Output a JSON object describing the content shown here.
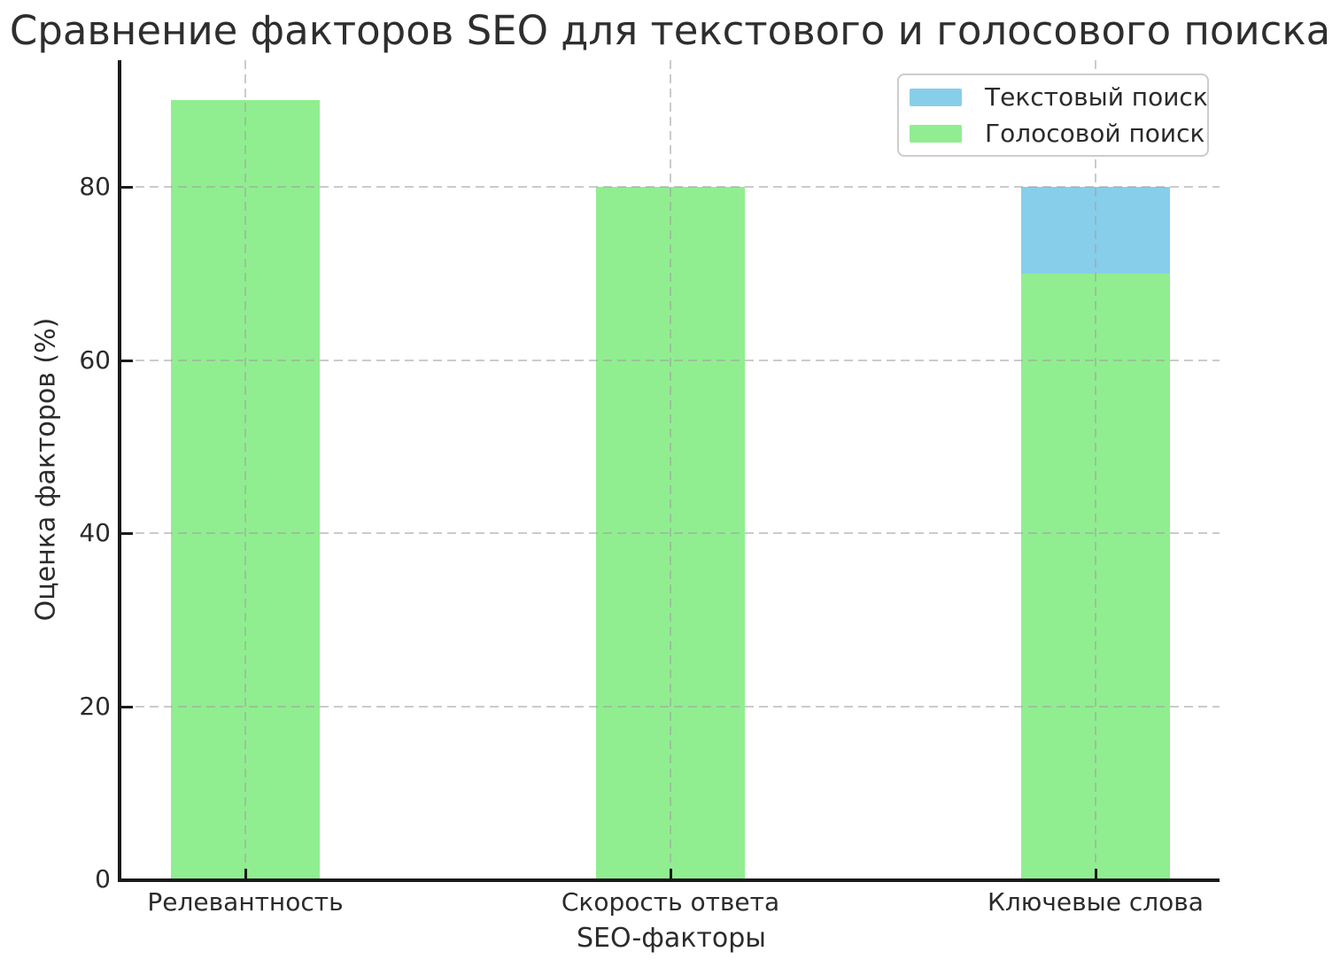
{
  "chart_data": {
    "type": "bar",
    "title": "Сравнение факторов SEO для текстового и голосового поиска",
    "xlabel": "SEO-факторы",
    "ylabel": "Оценка факторов (%)",
    "categories": [
      "Релевантность",
      "Скорость ответа",
      "Ключевые слова"
    ],
    "series": [
      {
        "name": "Текстовый поиск",
        "color": "#87CEEB",
        "values": [
          null,
          null,
          80
        ],
        "note": "only the segment above 70 is visible for 'Ключевые слова'; bars for other categories are fully hidden behind the 'Голосовой поиск' bars"
      },
      {
        "name": "Голосовой поиск",
        "color": "#90EE90",
        "values": [
          90,
          80,
          70
        ]
      }
    ],
    "yticks": [
      0,
      20,
      40,
      60,
      80
    ],
    "ylim": [
      0,
      94.6
    ],
    "bar_style": "overlapping-same-x",
    "draw_order": [
      "Текстовый поиск",
      "Голосовой поиск"
    ],
    "grid": {
      "x": true,
      "y": true,
      "style": "dashed",
      "on_top_of_bars": true
    },
    "legend_position": "upper right",
    "colors": {
      "axis": "#1a1a1a",
      "text": "#2b2b2b",
      "grid": "#cccccc",
      "background": "#ffffff"
    }
  }
}
